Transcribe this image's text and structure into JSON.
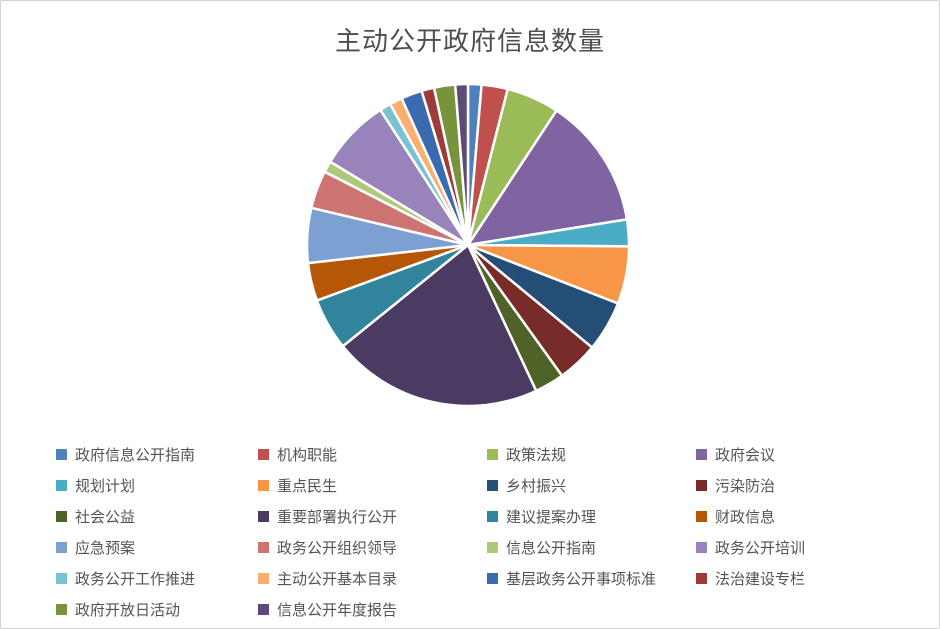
{
  "window": {
    "background": "#FFFFFF",
    "frame_border_color": "#D3D3D3"
  },
  "chart_data": {
    "type": "pie",
    "title": "主动公开政府信息数量",
    "title_color": "#4E4E4E",
    "legend_position": "bottom",
    "legend_text_color": "#545454",
    "start_angle_deg": 0,
    "clockwise": true,
    "slice_gap_color": "#FFFFFF",
    "series": [
      {
        "name": "政府信息公开指南",
        "value_percent": 1.35,
        "color": "#4F81BD"
      },
      {
        "name": "机构职能",
        "value_percent": 2.62,
        "color": "#C0504D"
      },
      {
        "name": "政策法规",
        "value_percent": 5.3,
        "color": "#9BBB59"
      },
      {
        "name": "政府会议",
        "value_percent": 13.19,
        "color": "#8064A2"
      },
      {
        "name": "规划计划",
        "value_percent": 2.68,
        "color": "#4BACC6"
      },
      {
        "name": "重点民生",
        "value_percent": 5.78,
        "color": "#F79646"
      },
      {
        "name": "乡村振兴",
        "value_percent": 5.07,
        "color": "#254E77"
      },
      {
        "name": "污染防治",
        "value_percent": 4.09,
        "color": "#772C2A"
      },
      {
        "name": "社会公益",
        "value_percent": 2.96,
        "color": "#4F6228"
      },
      {
        "name": "重要部署执行公开",
        "value_percent": 21.14,
        "color": "#4A3B63"
      },
      {
        "name": "建议提案办理",
        "value_percent": 5.22,
        "color": "#31849B"
      },
      {
        "name": "财政信息",
        "value_percent": 3.81,
        "color": "#B65708"
      },
      {
        "name": "应急预案",
        "value_percent": 5.5,
        "color": "#7CA0D2"
      },
      {
        "name": "政务公开组织领导",
        "value_percent": 3.81,
        "color": "#CD7371"
      },
      {
        "name": "信息公开指南",
        "value_percent": 1.13,
        "color": "#AFC97A"
      },
      {
        "name": "政务公开培训",
        "value_percent": 7.19,
        "color": "#9983BB"
      },
      {
        "name": "政务公开工作推进",
        "value_percent": 1.13,
        "color": "#79C2D3"
      },
      {
        "name": "主动公开基本目录",
        "value_percent": 1.27,
        "color": "#F9AF6E"
      },
      {
        "name": "基层政务公开事项标准",
        "value_percent": 2.11,
        "color": "#3A6BB0"
      },
      {
        "name": "法治建设专栏",
        "value_percent": 1.27,
        "color": "#9E3B38"
      },
      {
        "name": "政府开放日活动",
        "value_percent": 2.11,
        "color": "#77933C"
      },
      {
        "name": "信息公开年度报告",
        "value_percent": 1.27,
        "color": "#5E4A77"
      }
    ]
  }
}
